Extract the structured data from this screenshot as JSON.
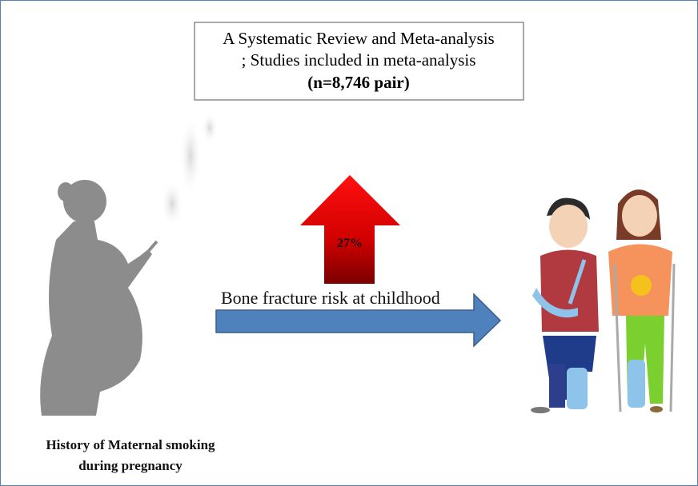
{
  "box": {
    "line1": "A Systematic Review and Meta-analysis",
    "line2": "; Studies included in meta-analysis",
    "line3": "(n=8,746 pair)"
  },
  "risk_arrow": {
    "label": "27%"
  },
  "main_arrow": {
    "label": "Bone fracture risk at childhood"
  },
  "caption": {
    "line1": "History of Maternal smoking",
    "line2": "during pregnancy"
  }
}
